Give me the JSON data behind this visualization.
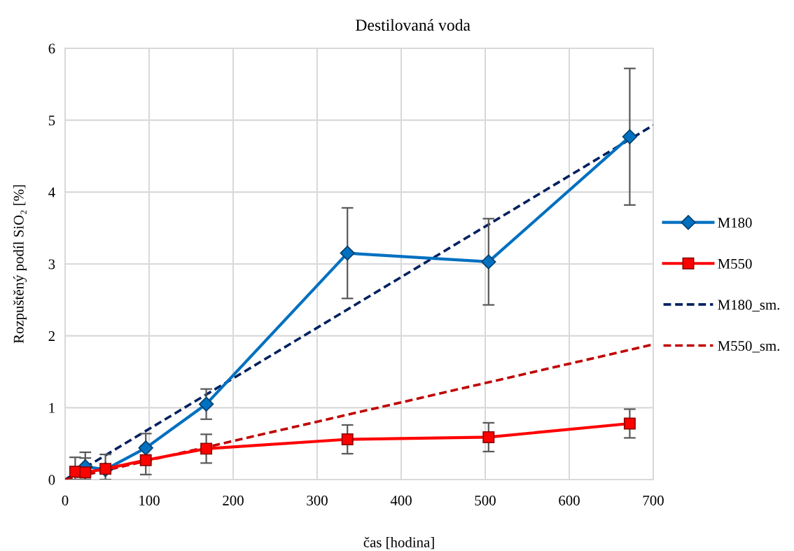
{
  "chart_data": {
    "type": "line",
    "title": "Destilovaná voda",
    "xlabel": "čas [hodina]",
    "ylabel": "Rozpuštěný podíl SiO₂ [%]",
    "xlim": [
      0,
      700
    ],
    "ylim": [
      0,
      6
    ],
    "xticks": [
      0,
      100,
      200,
      300,
      400,
      500,
      600,
      700
    ],
    "yticks": [
      0,
      1,
      2,
      3,
      4,
      5,
      6
    ],
    "grid": true,
    "legend": "right",
    "series": [
      {
        "name": "M180",
        "color": "#0070c0",
        "marker": "diamond",
        "line_style": "solid",
        "x": [
          24,
          48,
          96,
          168,
          336,
          504,
          672
        ],
        "values": [
          0.18,
          0.14,
          0.44,
          1.05,
          3.15,
          3.03,
          4.77
        ],
        "errors": [
          [
            0,
            0.38
          ],
          null,
          0.2,
          0.21,
          0.63,
          0.6,
          0.95
        ]
      },
      {
        "name": "M550",
        "color": "#ff0000",
        "marker": "square",
        "line_style": "solid",
        "x": [
          12,
          24,
          48,
          96,
          168,
          336,
          504,
          672
        ],
        "values": [
          0.11,
          0.1,
          0.15,
          0.27,
          0.43,
          0.56,
          0.59,
          0.78
        ],
        "errors": [
          [
            0,
            0.31
          ],
          [
            0,
            0.3
          ],
          [
            0,
            0.35
          ],
          0.2,
          0.2,
          0.2,
          0.2,
          0.2
        ]
      },
      {
        "name": "M180_sm.",
        "color": "#002060",
        "marker": "none",
        "line_style": "dashed",
        "x": [
          0,
          700
        ],
        "values": [
          0,
          4.93
        ]
      },
      {
        "name": "M550_sm.",
        "color": "#c00000",
        "marker": "none",
        "line_style": "dashed",
        "x": [
          0,
          700
        ],
        "values": [
          0,
          1.88
        ]
      }
    ]
  }
}
